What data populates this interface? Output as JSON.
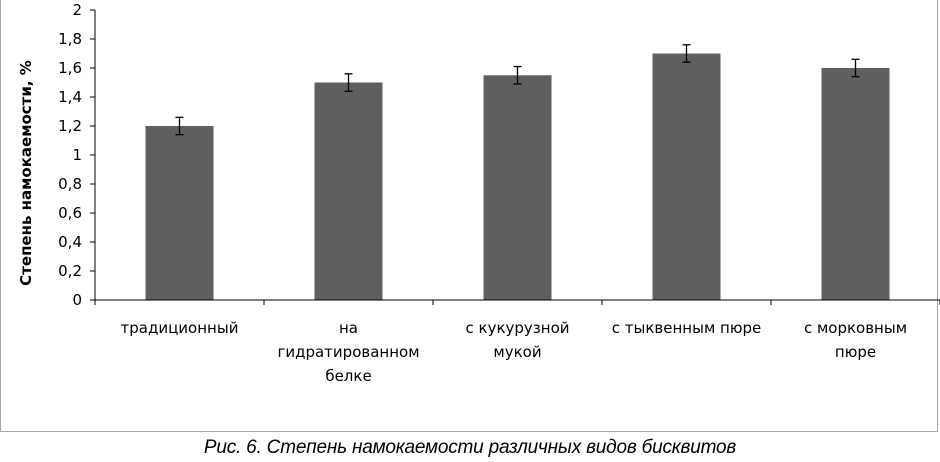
{
  "chart_data": {
    "type": "bar",
    "title": "",
    "xlabel": "",
    "ylabel": "Степень намокаемости, %",
    "ylim": [
      0,
      2
    ],
    "y_ticks": [
      "0",
      "0,2",
      "0,4",
      "0,6",
      "0,8",
      "1",
      "1,2",
      "1,4",
      "1,6",
      "1,8",
      "2"
    ],
    "categories": [
      [
        "традиционный"
      ],
      [
        "на",
        "гидратированном",
        "белке"
      ],
      [
        "с кукурузной",
        "мукой"
      ],
      [
        "с тыквенным пюре"
      ],
      [
        "с морковным",
        "пюре"
      ]
    ],
    "values": [
      1.2,
      1.5,
      1.55,
      1.7,
      1.6
    ],
    "error": [
      0.06,
      0.06,
      0.06,
      0.06,
      0.06
    ],
    "bar_color": "#5f5f5f",
    "grid": false,
    "legend": "none"
  },
  "caption": "Рис. 6. Степень намокаемости различных видов бисквитов"
}
